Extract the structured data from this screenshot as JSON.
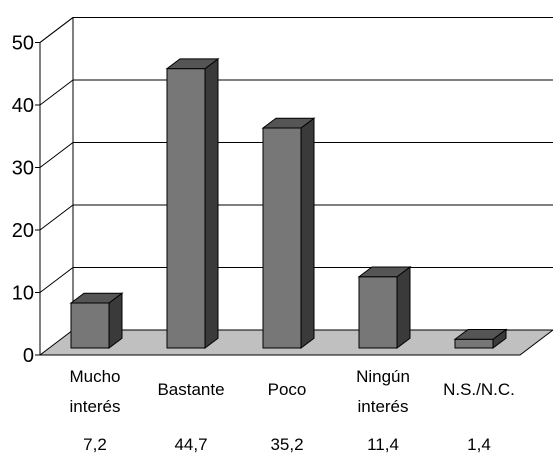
{
  "chart_data": {
    "type": "bar",
    "title": "",
    "xlabel": "",
    "ylabel": "",
    "ylim": [
      0,
      50
    ],
    "yticks": [
      "0",
      "10",
      "20",
      "30",
      "40",
      "50"
    ],
    "grid": true,
    "categories": [
      [
        "Mucho",
        "interés"
      ],
      [
        "Bastante"
      ],
      [
        "Poco"
      ],
      [
        "Ningún",
        "interés"
      ],
      [
        "N.S./N.C."
      ]
    ],
    "values": [
      7.2,
      44.7,
      35.2,
      11.4,
      1.4
    ],
    "value_labels": [
      "7,2",
      "44,7",
      "35,2",
      "11,4",
      "1,4"
    ],
    "colors": {
      "bar_front": "#777777",
      "bar_side": "#3a3a3a",
      "bar_top": "#555555",
      "floor": "#c0c0c0",
      "grid": "#000000"
    }
  }
}
